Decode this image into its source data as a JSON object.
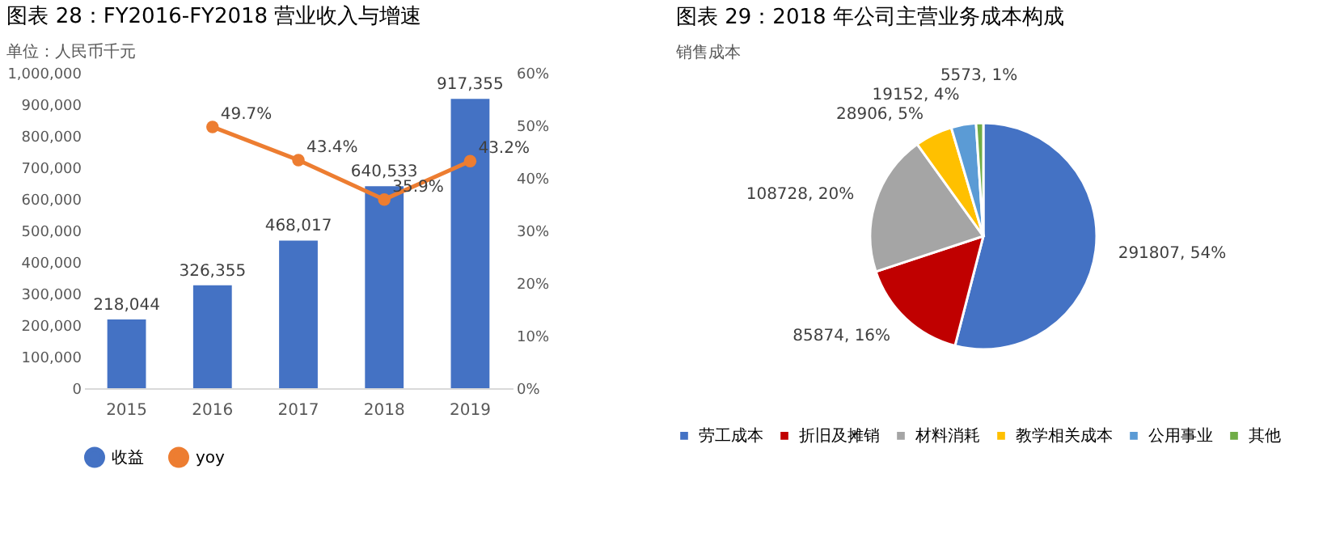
{
  "chart_data": [
    {
      "type": "bar",
      "title": "图表 28：FY2016-FY2018 营业收入与增速",
      "subtitle": "单位：人民币千元",
      "categories": [
        "2015",
        "2016",
        "2017",
        "2018",
        "2019"
      ],
      "series": [
        {
          "name": "收益",
          "type": "bar",
          "color": "#4472c4",
          "values": [
            218044,
            326355,
            468017,
            640533,
            917355
          ],
          "value_labels": [
            "218,044",
            "326,355",
            "468,017",
            "640,533",
            "917,355"
          ]
        },
        {
          "name": "yoy",
          "type": "line",
          "axis": "y2",
          "color": "#ed7d31",
          "values": [
            null,
            49.7,
            43.4,
            35.9,
            43.2
          ],
          "value_labels": [
            null,
            "49.7%",
            "43.4%",
            "35.9%",
            "43.2%"
          ]
        }
      ],
      "ylim": [
        0,
        1000000
      ],
      "yticks": [
        {
          "value": 0,
          "label": "0"
        },
        {
          "value": 100000,
          "label": "100,000"
        },
        {
          "value": 200000,
          "label": "200,000"
        },
        {
          "value": 300000,
          "label": "300,000"
        },
        {
          "value": 400000,
          "label": "400,000"
        },
        {
          "value": 500000,
          "label": "500,000"
        },
        {
          "value": 600000,
          "label": "600,000"
        },
        {
          "value": 700000,
          "label": "700,000"
        },
        {
          "value": 800000,
          "label": "800,000"
        },
        {
          "value": 900000,
          "label": "900,000"
        },
        {
          "value": 1000000,
          "label": "1,000,000"
        }
      ],
      "y2lim": [
        0,
        60
      ],
      "y2ticks": [
        {
          "value": 0,
          "label": "0%"
        },
        {
          "value": 10,
          "label": "10%"
        },
        {
          "value": 20,
          "label": "20%"
        },
        {
          "value": 30,
          "label": "30%"
        },
        {
          "value": 40,
          "label": "40%"
        },
        {
          "value": 50,
          "label": "50%"
        },
        {
          "value": 60,
          "label": "60%"
        }
      ],
      "marker": "circle",
      "legend": "bottom"
    },
    {
      "type": "pie",
      "title": "图表 29：2018 年公司主营业务成本构成",
      "subtitle": "销售成本",
      "categories": [
        "劳工成本",
        "折旧及摊销",
        "材料消耗",
        "教学相关成本",
        "公用事业",
        "其他"
      ],
      "values": [
        291807,
        85874,
        108728,
        28906,
        19152,
        5573
      ],
      "colors": [
        "#4472c4",
        "#c00000",
        "#a5a5a5",
        "#ffc000",
        "#5b9bd5",
        "#70ad47"
      ],
      "value_labels": [
        "291807, 54%",
        "85874, 16%",
        "108728, 20%",
        "28906, 5%",
        "19152, 4%",
        "5573, 1%"
      ],
      "legend": "bottom"
    }
  ]
}
